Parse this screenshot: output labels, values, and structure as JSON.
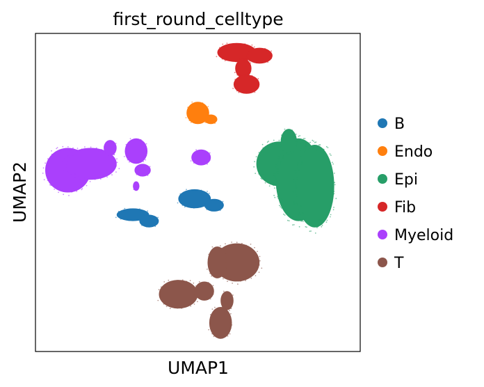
{
  "chart_data": {
    "type": "scatter",
    "title": "first_round_celltype",
    "xlabel": "UMAP1",
    "ylabel": "UMAP2",
    "xlim": [
      0,
      100
    ],
    "ylim": [
      0,
      100
    ],
    "grid": false,
    "ticks": false,
    "legend": {
      "placement": "right",
      "entries": [
        {
          "name": "B",
          "color": "#1f77b4"
        },
        {
          "name": "Endo",
          "color": "#ff7f0e"
        },
        {
          "name": "Epi",
          "color": "#279e68"
        },
        {
          "name": "Fib",
          "color": "#d62728"
        },
        {
          "name": "Myeloid",
          "color": "#aa40fc"
        },
        {
          "name": "T",
          "color": "#8c564b"
        }
      ]
    },
    "series": [
      {
        "name": "Fib",
        "color": "#d62728",
        "blobs": [
          {
            "x": 62,
            "y": 94,
            "rx": 6,
            "ry": 3
          },
          {
            "x": 69,
            "y": 93,
            "rx": 4,
            "ry": 2.5
          },
          {
            "x": 64,
            "y": 89,
            "rx": 2.5,
            "ry": 3
          },
          {
            "x": 65,
            "y": 84,
            "rx": 4,
            "ry": 3
          }
        ]
      },
      {
        "name": "Endo",
        "color": "#ff7f0e",
        "blobs": [
          {
            "x": 50,
            "y": 75,
            "rx": 3.5,
            "ry": 3.5
          },
          {
            "x": 54,
            "y": 73,
            "rx": 2,
            "ry": 1.5
          }
        ]
      },
      {
        "name": "Epi",
        "color": "#279e68",
        "blobs": [
          {
            "x": 75,
            "y": 59,
            "rx": 7,
            "ry": 7
          },
          {
            "x": 81,
            "y": 54,
            "rx": 7,
            "ry": 13
          },
          {
            "x": 86,
            "y": 52,
            "rx": 6,
            "ry": 13
          },
          {
            "x": 78,
            "y": 66,
            "rx": 2.5,
            "ry": 4
          }
        ]
      },
      {
        "name": "Myeloid",
        "color": "#aa40fc",
        "blobs": [
          {
            "x": 10,
            "y": 57,
            "rx": 7,
            "ry": 7
          },
          {
            "x": 17,
            "y": 59,
            "rx": 8,
            "ry": 5
          },
          {
            "x": 23,
            "y": 64,
            "rx": 2,
            "ry": 2.5
          },
          {
            "x": 31,
            "y": 63,
            "rx": 3.5,
            "ry": 4
          },
          {
            "x": 33,
            "y": 57,
            "rx": 2.5,
            "ry": 2
          },
          {
            "x": 31,
            "y": 52,
            "rx": 1,
            "ry": 1.5
          },
          {
            "x": 51,
            "y": 61,
            "rx": 3,
            "ry": 2.5
          }
        ]
      },
      {
        "name": "B",
        "color": "#1f77b4",
        "blobs": [
          {
            "x": 49,
            "y": 48,
            "rx": 5,
            "ry": 3
          },
          {
            "x": 55,
            "y": 46,
            "rx": 3,
            "ry": 2
          },
          {
            "x": 30,
            "y": 43,
            "rx": 5,
            "ry": 2
          },
          {
            "x": 35,
            "y": 41,
            "rx": 3,
            "ry": 2
          }
        ]
      },
      {
        "name": "T",
        "color": "#8c564b",
        "blobs": [
          {
            "x": 62,
            "y": 28,
            "rx": 7,
            "ry": 6
          },
          {
            "x": 56,
            "y": 28,
            "rx": 3,
            "ry": 5
          },
          {
            "x": 44,
            "y": 18,
            "rx": 6,
            "ry": 4.5
          },
          {
            "x": 52,
            "y": 19,
            "rx": 3,
            "ry": 3
          },
          {
            "x": 57,
            "y": 9,
            "rx": 3.5,
            "ry": 5
          },
          {
            "x": 59,
            "y": 16,
            "rx": 2,
            "ry": 3
          }
        ]
      }
    ]
  }
}
